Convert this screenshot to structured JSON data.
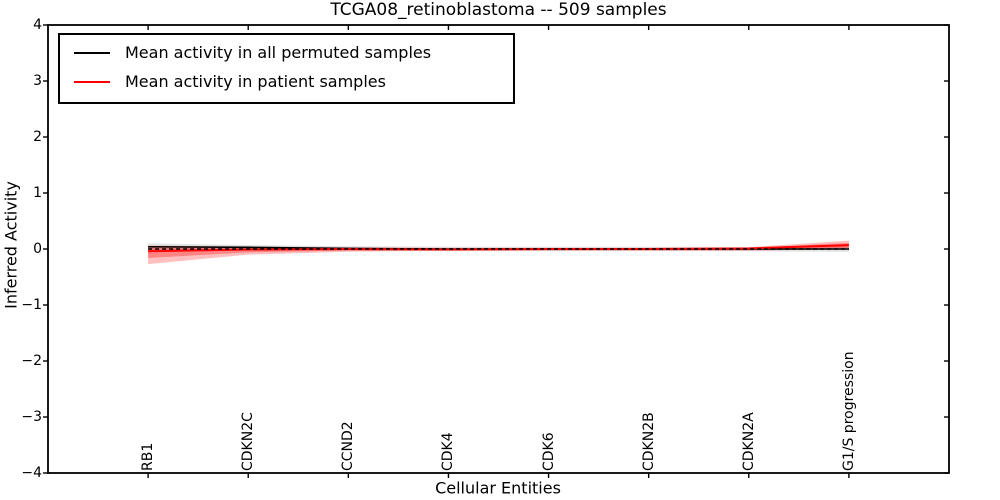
{
  "title": "TCGA08_retinoblastoma -- 509 samples",
  "chart_data": {
    "type": "line",
    "title": "TCGA08_retinoblastoma -- 509 samples",
    "xlabel": "Cellular Entities",
    "ylabel": "Inferred Activity",
    "ylim": [
      -4,
      4
    ],
    "grid": false,
    "legend_position": "upper left",
    "categories": [
      "RB1",
      "CDKN2C",
      "CCND2",
      "CDK4",
      "CDK6",
      "CDKN2B",
      "CDKN2A",
      "G1/S progression"
    ],
    "ytick_values": [
      4,
      3,
      2,
      1,
      0,
      -1,
      -2,
      -3,
      -4
    ],
    "ytick_labels": [
      "4",
      "3",
      "2",
      "1",
      "0",
      "−1",
      "−2",
      "−3",
      "−4"
    ],
    "legend": [
      {
        "label": "Mean activity in all permuted samples",
        "color": "#000000"
      },
      {
        "label": "Mean activity in patient samples",
        "color": "#ff0000"
      }
    ],
    "series": [
      {
        "name": "mean-permuted",
        "color": "#000000",
        "width": 1.6,
        "dash": null,
        "values": [
          0.04,
          0.03,
          0.01,
          0.0,
          0.0,
          0.0,
          0.0,
          0.0
        ]
      },
      {
        "name": "mean-patient",
        "color": "#ff0000",
        "width": 2.0,
        "dash": null,
        "values": [
          -0.04,
          -0.01,
          0.0,
          -0.01,
          0.0,
          0.0,
          0.01,
          0.07
        ]
      },
      {
        "name": "zero-reference",
        "color": "#000000",
        "width": 1.4,
        "dash": "4 3",
        "values": [
          0,
          0,
          0,
          0,
          0,
          0,
          0,
          0
        ]
      }
    ],
    "bands": [
      {
        "name": "permuted-spread-band",
        "color": "#000000",
        "opacity": 0.12,
        "upper": [
          0.1,
          0.07,
          0.05,
          0.04,
          0.04,
          0.04,
          0.04,
          0.05
        ],
        "lower": [
          -0.04,
          -0.02,
          -0.03,
          -0.04,
          -0.04,
          -0.04,
          -0.04,
          -0.05
        ]
      },
      {
        "name": "patient-spread-band-outer",
        "color": "#ff0000",
        "opacity": 0.25,
        "upper": [
          0.06,
          0.04,
          0.03,
          0.02,
          0.02,
          0.02,
          0.03,
          0.15
        ],
        "lower": [
          -0.27,
          -0.1,
          -0.05,
          -0.03,
          -0.03,
          -0.03,
          -0.03,
          0.0
        ]
      },
      {
        "name": "patient-spread-band-inner",
        "color": "#ff0000",
        "opacity": 0.3,
        "upper": [
          0.04,
          0.03,
          0.02,
          0.01,
          0.01,
          0.01,
          0.02,
          0.11
        ],
        "lower": [
          -0.16,
          -0.06,
          -0.03,
          -0.02,
          -0.02,
          -0.02,
          -0.02,
          0.02
        ]
      }
    ]
  }
}
